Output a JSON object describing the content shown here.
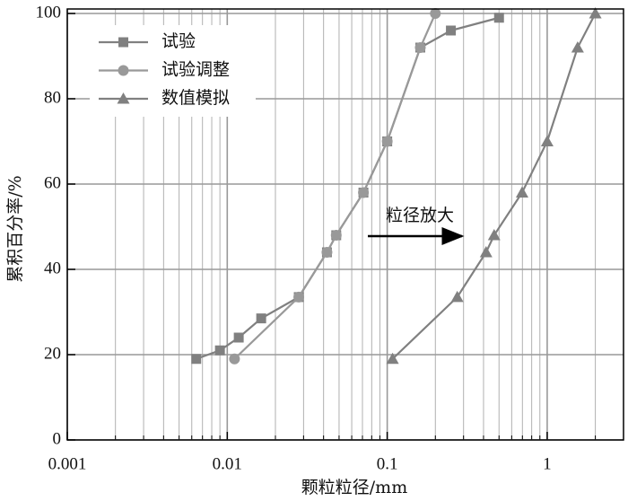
{
  "chart_data": {
    "type": "line",
    "x_label": "颗粒粒径/mm",
    "y_label": "累积百分率/%",
    "annotation": "粒径放大",
    "log_x": true,
    "xlim": [
      0.001,
      3
    ],
    "xticks": [
      0.001,
      0.01,
      0.1,
      1
    ],
    "ylim": [
      0,
      100
    ],
    "yticks": [
      0,
      20,
      40,
      60,
      80,
      100
    ],
    "grid": true,
    "legend": "upper left",
    "series": [
      {
        "name": "试验",
        "color": "#808080",
        "marker": "square",
        "x": [
          0.0064,
          0.009,
          0.0118,
          0.0163,
          0.028,
          0.042,
          0.048,
          0.071,
          0.1,
          0.161,
          0.25,
          0.5
        ],
        "values": [
          19,
          21,
          24,
          28.5,
          33.5,
          44,
          48,
          58,
          70,
          92,
          96,
          99
        ]
      },
      {
        "name": "试验调整",
        "color": "#999999",
        "marker": "circle",
        "x": [
          0.0111,
          0.028,
          0.042,
          0.048,
          0.071,
          0.1,
          0.161,
          0.2
        ],
        "values": [
          19,
          33.5,
          44,
          48,
          58,
          70,
          92,
          100
        ]
      },
      {
        "name": "数值模拟",
        "color": "#808080",
        "marker": "triangle",
        "x": [
          0.108,
          0.274,
          0.415,
          0.466,
          0.697,
          1,
          1.55,
          2
        ],
        "values": [
          19,
          33.5,
          44,
          48,
          58,
          70,
          92,
          100
        ]
      }
    ]
  }
}
